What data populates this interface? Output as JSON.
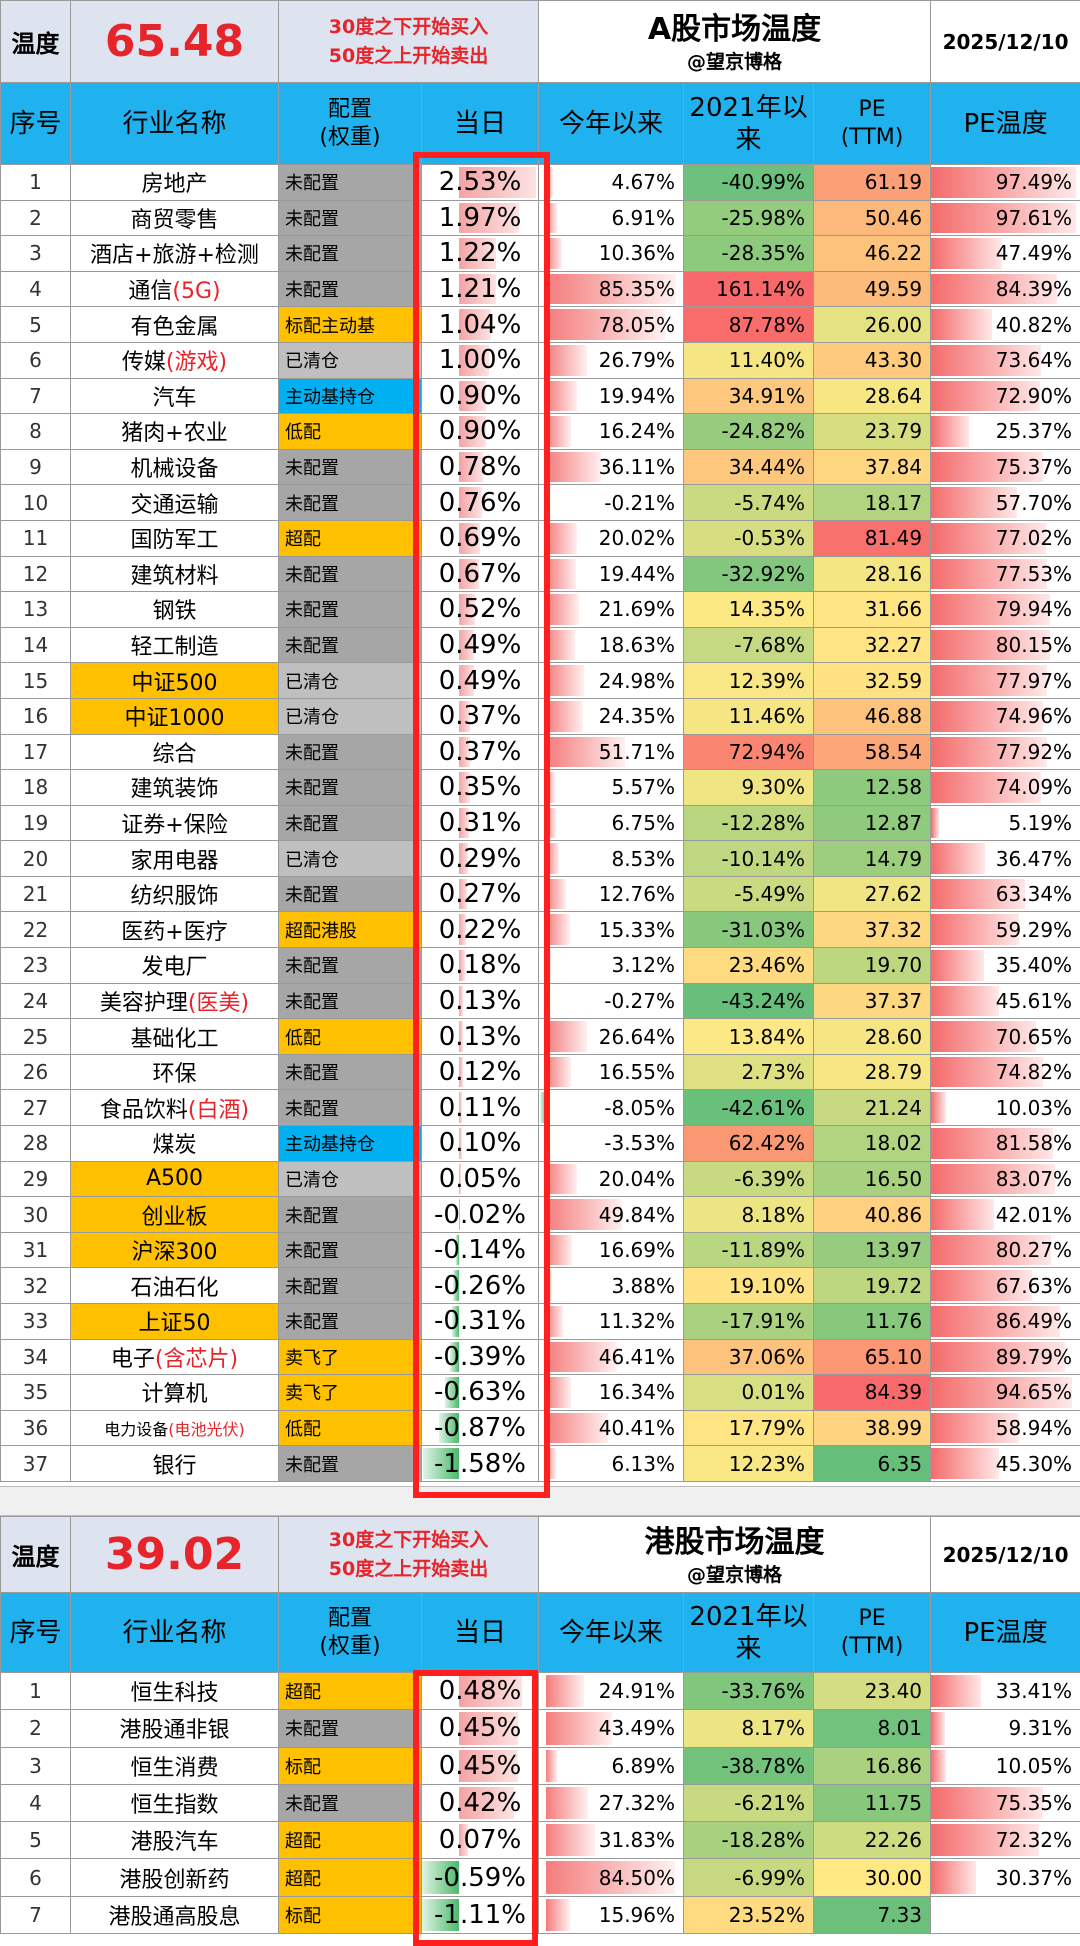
{
  "a_share": {
    "temp_label": "温度",
    "temp_value": "65.48",
    "rule_line1": "30度之下开始买入",
    "rule_line2": "50度之上开始卖出",
    "title": "A股市场温度",
    "author": "@望京博格",
    "date": "2025/12/10",
    "headers": {
      "idx": "序号",
      "name": "行业名称",
      "alloc": "配置\n(权重)",
      "day": "当日",
      "ytd": "今年以来",
      "since2021": "2021年以来",
      "pe": "PE\n(TTM)",
      "pe_temp": "PE温度"
    },
    "rows": [
      {
        "idx": "1",
        "name": "房地产",
        "alloc": "未配置",
        "day": "2.53%",
        "ytd": "4.67%",
        "since": "-40.99%",
        "pe": "61.19",
        "pet": "97.49%",
        "day_v": 2.53,
        "ytd_v": 4.67,
        "since_v": -40.99,
        "pe_v": 61.19,
        "pet_v": 97.49
      },
      {
        "idx": "2",
        "name": "商贸零售",
        "alloc": "未配置",
        "day": "1.97%",
        "ytd": "6.91%",
        "since": "-25.98%",
        "pe": "50.46",
        "pet": "97.61%",
        "day_v": 1.97,
        "ytd_v": 6.91,
        "since_v": -25.98,
        "pe_v": 50.46,
        "pet_v": 97.61
      },
      {
        "idx": "3",
        "name": "酒店+旅游+检测",
        "alloc": "未配置",
        "day": "1.22%",
        "ytd": "10.36%",
        "since": "-28.35%",
        "pe": "46.22",
        "pet": "47.49%",
        "day_v": 1.22,
        "ytd_v": 10.36,
        "since_v": -28.35,
        "pe_v": 46.22,
        "pet_v": 47.49
      },
      {
        "idx": "4",
        "name": "通信",
        "name_red": "(5G)",
        "alloc": "未配置",
        "day": "1.21%",
        "ytd": "85.35%",
        "since": "161.14%",
        "pe": "49.59",
        "pet": "84.39%",
        "day_v": 1.21,
        "ytd_v": 85.35,
        "since_v": 161.14,
        "pe_v": 49.59,
        "pet_v": 84.39
      },
      {
        "idx": "5",
        "name": "有色金属",
        "alloc": "标配主动基",
        "alloc_color": "orange",
        "day": "1.04%",
        "ytd": "78.05%",
        "since": "87.78%",
        "pe": "26.00",
        "pet": "40.82%",
        "day_v": 1.04,
        "ytd_v": 78.05,
        "since_v": 87.78,
        "pe_v": 26.0,
        "pet_v": 40.82
      },
      {
        "idx": "6",
        "name": "传媒",
        "name_red": "(游戏)",
        "alloc": "已清仓",
        "alloc_color": "gray2",
        "day": "1.00%",
        "ytd": "26.79%",
        "since": "11.40%",
        "pe": "43.30",
        "pet": "73.64%",
        "day_v": 1.0,
        "ytd_v": 26.79,
        "since_v": 11.4,
        "pe_v": 43.3,
        "pet_v": 73.64
      },
      {
        "idx": "7",
        "name": "汽车",
        "alloc": "主动基持仓",
        "alloc_color": "blue",
        "day": "0.90%",
        "ytd": "19.94%",
        "since": "34.91%",
        "pe": "28.64",
        "pet": "72.90%",
        "day_v": 0.9,
        "ytd_v": 19.94,
        "since_v": 34.91,
        "pe_v": 28.64,
        "pet_v": 72.9
      },
      {
        "idx": "8",
        "name": "猪肉+农业",
        "alloc": "低配",
        "alloc_color": "orange",
        "day": "0.90%",
        "ytd": "16.24%",
        "since": "-24.82%",
        "pe": "23.79",
        "pet": "25.37%",
        "day_v": 0.9,
        "ytd_v": 16.24,
        "since_v": -24.82,
        "pe_v": 23.79,
        "pet_v": 25.37
      },
      {
        "idx": "9",
        "name": "机械设备",
        "alloc": "未配置",
        "day": "0.78%",
        "ytd": "36.11%",
        "since": "34.44%",
        "pe": "37.84",
        "pet": "75.37%",
        "day_v": 0.78,
        "ytd_v": 36.11,
        "since_v": 34.44,
        "pe_v": 37.84,
        "pet_v": 75.37
      },
      {
        "idx": "10",
        "name": "交通运输",
        "alloc": "未配置",
        "day": "0.76%",
        "ytd": "-0.21%",
        "since": "-5.74%",
        "pe": "18.17",
        "pet": "57.70%",
        "day_v": 0.76,
        "ytd_v": -0.21,
        "since_v": -5.74,
        "pe_v": 18.17,
        "pet_v": 57.7
      },
      {
        "idx": "11",
        "name": "国防军工",
        "alloc": "超配",
        "alloc_color": "orange",
        "day": "0.69%",
        "ytd": "20.02%",
        "since": "-0.53%",
        "pe": "81.49",
        "pet": "77.02%",
        "day_v": 0.69,
        "ytd_v": 20.02,
        "since_v": -0.53,
        "pe_v": 81.49,
        "pet_v": 77.02
      },
      {
        "idx": "12",
        "name": "建筑材料",
        "alloc": "未配置",
        "day": "0.67%",
        "ytd": "19.44%",
        "since": "-32.92%",
        "pe": "28.16",
        "pet": "77.53%",
        "day_v": 0.67,
        "ytd_v": 19.44,
        "since_v": -32.92,
        "pe_v": 28.16,
        "pet_v": 77.53
      },
      {
        "idx": "13",
        "name": "钢铁",
        "alloc": "未配置",
        "day": "0.52%",
        "ytd": "21.69%",
        "since": "14.35%",
        "pe": "31.66",
        "pet": "79.94%",
        "day_v": 0.52,
        "ytd_v": 21.69,
        "since_v": 14.35,
        "pe_v": 31.66,
        "pet_v": 79.94
      },
      {
        "idx": "14",
        "name": "轻工制造",
        "alloc": "未配置",
        "day": "0.49%",
        "ytd": "18.63%",
        "since": "-7.68%",
        "pe": "32.27",
        "pet": "80.15%",
        "day_v": 0.49,
        "ytd_v": 18.63,
        "since_v": -7.68,
        "pe_v": 32.27,
        "pet_v": 80.15
      },
      {
        "idx": "15",
        "name": "中证500",
        "name_hl": true,
        "alloc": "已清仓",
        "alloc_color": "gray2",
        "day": "0.49%",
        "ytd": "24.98%",
        "since": "12.39%",
        "pe": "32.59",
        "pet": "77.97%",
        "day_v": 0.49,
        "ytd_v": 24.98,
        "since_v": 12.39,
        "pe_v": 32.59,
        "pet_v": 77.97
      },
      {
        "idx": "16",
        "name": "中证1000",
        "name_hl": true,
        "alloc": "已清仓",
        "alloc_color": "gray2",
        "day": "0.37%",
        "ytd": "24.35%",
        "since": "11.46%",
        "pe": "46.88",
        "pet": "74.96%",
        "day_v": 0.37,
        "ytd_v": 24.35,
        "since_v": 11.46,
        "pe_v": 46.88,
        "pet_v": 74.96
      },
      {
        "idx": "17",
        "name": "综合",
        "alloc": "未配置",
        "day": "0.37%",
        "ytd": "51.71%",
        "since": "72.94%",
        "pe": "58.54",
        "pet": "77.92%",
        "day_v": 0.37,
        "ytd_v": 51.71,
        "since_v": 72.94,
        "pe_v": 58.54,
        "pet_v": 77.92
      },
      {
        "idx": "18",
        "name": "建筑装饰",
        "alloc": "未配置",
        "day": "0.35%",
        "ytd": "5.57%",
        "since": "9.30%",
        "pe": "12.58",
        "pet": "74.09%",
        "day_v": 0.35,
        "ytd_v": 5.57,
        "since_v": 9.3,
        "pe_v": 12.58,
        "pet_v": 74.09
      },
      {
        "idx": "19",
        "name": "证券+保险",
        "alloc": "未配置",
        "day": "0.31%",
        "ytd": "6.75%",
        "since": "-12.28%",
        "pe": "12.87",
        "pet": "5.19%",
        "day_v": 0.31,
        "ytd_v": 6.75,
        "since_v": -12.28,
        "pe_v": 12.87,
        "pet_v": 5.19
      },
      {
        "idx": "20",
        "name": "家用电器",
        "alloc": "已清仓",
        "alloc_color": "gray2",
        "day": "0.29%",
        "ytd": "8.53%",
        "since": "-10.14%",
        "pe": "14.79",
        "pet": "36.47%",
        "day_v": 0.29,
        "ytd_v": 8.53,
        "since_v": -10.14,
        "pe_v": 14.79,
        "pet_v": 36.47
      },
      {
        "idx": "21",
        "name": "纺织服饰",
        "alloc": "未配置",
        "day": "0.27%",
        "ytd": "12.76%",
        "since": "-5.49%",
        "pe": "27.62",
        "pet": "63.34%",
        "day_v": 0.27,
        "ytd_v": 12.76,
        "since_v": -5.49,
        "pe_v": 27.62,
        "pet_v": 63.34
      },
      {
        "idx": "22",
        "name": "医药+医疗",
        "alloc": "超配港股",
        "alloc_color": "orange",
        "day": "0.22%",
        "ytd": "15.33%",
        "since": "-31.03%",
        "pe": "37.32",
        "pet": "59.29%",
        "day_v": 0.22,
        "ytd_v": 15.33,
        "since_v": -31.03,
        "pe_v": 37.32,
        "pet_v": 59.29
      },
      {
        "idx": "23",
        "name": "发电厂",
        "alloc": "未配置",
        "day": "0.18%",
        "ytd": "3.12%",
        "since": "23.46%",
        "pe": "19.70",
        "pet": "35.40%",
        "day_v": 0.18,
        "ytd_v": 3.12,
        "since_v": 23.46,
        "pe_v": 19.7,
        "pet_v": 35.4
      },
      {
        "idx": "24",
        "name": "美容护理",
        "name_red": "(医美)",
        "alloc": "未配置",
        "day": "0.13%",
        "ytd": "-0.27%",
        "since": "-43.24%",
        "pe": "37.37",
        "pet": "45.61%",
        "day_v": 0.13,
        "ytd_v": -0.27,
        "since_v": -43.24,
        "pe_v": 37.37,
        "pet_v": 45.61
      },
      {
        "idx": "25",
        "name": "基础化工",
        "alloc": "低配",
        "alloc_color": "orange",
        "day": "0.13%",
        "ytd": "26.64%",
        "since": "13.84%",
        "pe": "28.60",
        "pet": "70.65%",
        "day_v": 0.13,
        "ytd_v": 26.64,
        "since_v": 13.84,
        "pe_v": 28.6,
        "pet_v": 70.65
      },
      {
        "idx": "26",
        "name": "环保",
        "alloc": "未配置",
        "day": "0.12%",
        "ytd": "16.55%",
        "since": "2.73%",
        "pe": "28.79",
        "pet": "74.82%",
        "day_v": 0.12,
        "ytd_v": 16.55,
        "since_v": 2.73,
        "pe_v": 28.79,
        "pet_v": 74.82
      },
      {
        "idx": "27",
        "name": "食品饮料",
        "name_red": "(白酒)",
        "alloc": "未配置",
        "day": "0.11%",
        "ytd": "-8.05%",
        "since": "-42.61%",
        "pe": "21.24",
        "pet": "10.03%",
        "day_v": 0.11,
        "ytd_v": -8.05,
        "since_v": -42.61,
        "pe_v": 21.24,
        "pet_v": 10.03
      },
      {
        "idx": "28",
        "name": "煤炭",
        "alloc": "主动基持仓",
        "alloc_color": "blue",
        "day": "0.10%",
        "ytd": "-3.53%",
        "since": "62.42%",
        "pe": "18.02",
        "pet": "81.58%",
        "day_v": 0.1,
        "ytd_v": -3.53,
        "since_v": 62.42,
        "pe_v": 18.02,
        "pet_v": 81.58
      },
      {
        "idx": "29",
        "name": "A500",
        "name_hl": true,
        "alloc": "已清仓",
        "alloc_color": "gray2",
        "day": "0.05%",
        "ytd": "20.04%",
        "since": "-6.39%",
        "pe": "16.50",
        "pet": "83.07%",
        "day_v": 0.05,
        "ytd_v": 20.04,
        "since_v": -6.39,
        "pe_v": 16.5,
        "pet_v": 83.07
      },
      {
        "idx": "30",
        "name": "创业板",
        "name_hl": true,
        "alloc": "未配置",
        "day": "-0.02%",
        "ytd": "49.84%",
        "since": "8.18%",
        "pe": "40.86",
        "pet": "42.01%",
        "day_v": -0.02,
        "ytd_v": 49.84,
        "since_v": 8.18,
        "pe_v": 40.86,
        "pet_v": 42.01
      },
      {
        "idx": "31",
        "name": "沪深300",
        "name_hl": true,
        "alloc": "未配置",
        "day": "-0.14%",
        "ytd": "16.69%",
        "since": "-11.89%",
        "pe": "13.97",
        "pet": "80.27%",
        "day_v": -0.14,
        "ytd_v": 16.69,
        "since_v": -11.89,
        "pe_v": 13.97,
        "pet_v": 80.27
      },
      {
        "idx": "32",
        "name": "石油石化",
        "alloc": "未配置",
        "day": "-0.26%",
        "ytd": "3.88%",
        "since": "19.10%",
        "pe": "19.72",
        "pet": "67.63%",
        "day_v": -0.26,
        "ytd_v": 3.88,
        "since_v": 19.1,
        "pe_v": 19.72,
        "pet_v": 67.63
      },
      {
        "idx": "33",
        "name": "上证50",
        "name_hl": true,
        "alloc": "未配置",
        "day": "-0.31%",
        "ytd": "11.32%",
        "since": "-17.91%",
        "pe": "11.76",
        "pet": "86.49%",
        "day_v": -0.31,
        "ytd_v": 11.32,
        "since_v": -17.91,
        "pe_v": 11.76,
        "pet_v": 86.49
      },
      {
        "idx": "34",
        "name": "电子",
        "name_red": "(含芯片)",
        "alloc": "卖飞了",
        "alloc_color": "orange",
        "day": "-0.39%",
        "ytd": "46.41%",
        "since": "37.06%",
        "pe": "65.10",
        "pet": "89.79%",
        "day_v": -0.39,
        "ytd_v": 46.41,
        "since_v": 37.06,
        "pe_v": 65.1,
        "pet_v": 89.79
      },
      {
        "idx": "35",
        "name": "计算机",
        "alloc": "卖飞了",
        "alloc_color": "orange",
        "day": "-0.63%",
        "ytd": "16.34%",
        "since": "0.01%",
        "pe": "84.39",
        "pet": "94.65%",
        "day_v": -0.63,
        "ytd_v": 16.34,
        "since_v": 0.01,
        "pe_v": 84.39,
        "pet_v": 94.65
      },
      {
        "idx": "36",
        "name": "电力设备",
        "name_red": "(电池光伏)",
        "name_small": true,
        "alloc": "低配",
        "alloc_color": "orange",
        "day": "-0.87%",
        "ytd": "40.41%",
        "since": "17.79%",
        "pe": "38.99",
        "pet": "58.94%",
        "day_v": -0.87,
        "ytd_v": 40.41,
        "since_v": 17.79,
        "pe_v": 38.99,
        "pet_v": 58.94
      },
      {
        "idx": "37",
        "name": "银行",
        "alloc": "未配置",
        "day": "-1.58%",
        "ytd": "6.13%",
        "since": "12.23%",
        "pe": "6.35",
        "pet": "45.30%",
        "day_v": -1.58,
        "ytd_v": 6.13,
        "since_v": 12.23,
        "pe_v": 6.35,
        "pet_v": 45.3
      }
    ]
  },
  "hk_share": {
    "temp_label": "温度",
    "temp_value": "39.02",
    "rule_line1": "30度之下开始买入",
    "rule_line2": "50度之上开始卖出",
    "title": "港股市场温度",
    "author": "@望京博格",
    "date": "2025/12/10",
    "headers": {
      "idx": "序号",
      "name": "行业名称",
      "alloc": "配置\n(权重)",
      "day": "当日",
      "ytd": "今年以来",
      "since2021": "2021年以来",
      "pe": "PE\n(TTM)",
      "pe_temp": "PE温度"
    },
    "rows": [
      {
        "idx": "1",
        "name": "恒生科技",
        "alloc": "超配",
        "alloc_color": "orange",
        "day": "0.48%",
        "ytd": "24.91%",
        "since": "-33.76%",
        "pe": "23.40",
        "pet": "33.41%",
        "day_v": 0.48,
        "ytd_v": 24.91,
        "since_v": -33.76,
        "pe_v": 23.4,
        "pet_v": 33.41
      },
      {
        "idx": "2",
        "name": "港股通非银",
        "alloc": "未配置",
        "day": "0.45%",
        "ytd": "43.49%",
        "since": "8.17%",
        "pe": "8.01",
        "pet": "9.31%",
        "day_v": 0.45,
        "ytd_v": 43.49,
        "since_v": 8.17,
        "pe_v": 8.01,
        "pet_v": 9.31
      },
      {
        "idx": "3",
        "name": "恒生消费",
        "alloc": "标配",
        "alloc_color": "orange",
        "day": "0.45%",
        "ytd": "6.89%",
        "since": "-38.78%",
        "pe": "16.86",
        "pet": "10.05%",
        "day_v": 0.45,
        "ytd_v": 6.89,
        "since_v": -38.78,
        "pe_v": 16.86,
        "pet_v": 10.05
      },
      {
        "idx": "4",
        "name": "恒生指数",
        "alloc": "未配置",
        "day": "0.42%",
        "ytd": "27.32%",
        "since": "-6.21%",
        "pe": "11.75",
        "pet": "75.35%",
        "day_v": 0.42,
        "ytd_v": 27.32,
        "since_v": -6.21,
        "pe_v": 11.75,
        "pet_v": 75.35
      },
      {
        "idx": "5",
        "name": "港股汽车",
        "alloc": "超配",
        "alloc_color": "orange",
        "day": "0.07%",
        "ytd": "31.83%",
        "since": "-18.28%",
        "pe": "22.26",
        "pet": "72.32%",
        "day_v": 0.07,
        "ytd_v": 31.83,
        "since_v": -18.28,
        "pe_v": 22.26,
        "pet_v": 72.32
      },
      {
        "idx": "6",
        "name": "港股创新药",
        "alloc": "超配",
        "alloc_color": "orange",
        "day": "-0.59%",
        "ytd": "84.50%",
        "since": "-6.99%",
        "pe": "30.00",
        "pet": "30.37%",
        "day_v": -0.59,
        "ytd_v": 84.5,
        "since_v": -6.99,
        "pe_v": 30.0,
        "pet_v": 30.37
      },
      {
        "idx": "7",
        "name": "港股通高股息",
        "alloc": "标配",
        "alloc_color": "orange",
        "day": "-1.11%",
        "ytd": "15.96%",
        "since": "23.52%",
        "pe": "7.33",
        "pet": "",
        "day_v": -1.11,
        "ytd_v": 15.96,
        "since_v": 23.52,
        "pe_v": 7.33,
        "pet_v": 0
      }
    ]
  }
}
